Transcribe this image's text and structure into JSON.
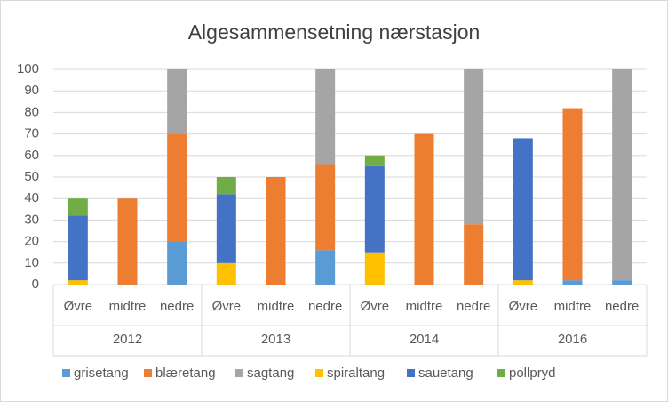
{
  "chart_data": {
    "type": "bar",
    "stacked": true,
    "title": "Algesammensetning nærstasjon",
    "groups": [
      "2012",
      "2013",
      "2014",
      "2016"
    ],
    "categories": [
      "Øvre",
      "midtre",
      "nedre",
      "Øvre",
      "midtre",
      "nedre",
      "Øvre",
      "midtre",
      "nedre",
      "Øvre",
      "midtre",
      "nedre"
    ],
    "series": [
      {
        "name": "grisetang",
        "color": "#5b9bd5",
        "values": [
          0,
          0,
          20,
          0,
          0,
          16,
          0,
          0,
          0,
          0,
          2,
          2
        ]
      },
      {
        "name": "blæretang",
        "color": "#ed7d31",
        "values": [
          0,
          40,
          50,
          0,
          50,
          40,
          0,
          70,
          28,
          0,
          80,
          0
        ]
      },
      {
        "name": "sagtang",
        "color": "#a5a5a5",
        "values": [
          0,
          0,
          30,
          0,
          0,
          44,
          0,
          0,
          72,
          0,
          0,
          98
        ]
      },
      {
        "name": "spiraltang",
        "color": "#ffc000",
        "values": [
          2,
          0,
          0,
          10,
          0,
          0,
          15,
          0,
          0,
          2,
          0,
          0
        ]
      },
      {
        "name": "sauetang",
        "color": "#4472c4",
        "values": [
          30,
          0,
          0,
          32,
          0,
          0,
          40,
          0,
          0,
          66,
          0,
          0
        ]
      },
      {
        "name": "pollpryd",
        "color": "#70ad47",
        "values": [
          8,
          0,
          0,
          8,
          0,
          0,
          5,
          0,
          0,
          0,
          0,
          0
        ]
      }
    ],
    "ylim": [
      0,
      100
    ],
    "yticks": [
      0,
      10,
      20,
      30,
      40,
      50,
      60,
      70,
      80,
      90,
      100
    ],
    "grid": true,
    "legend": "bottom"
  }
}
